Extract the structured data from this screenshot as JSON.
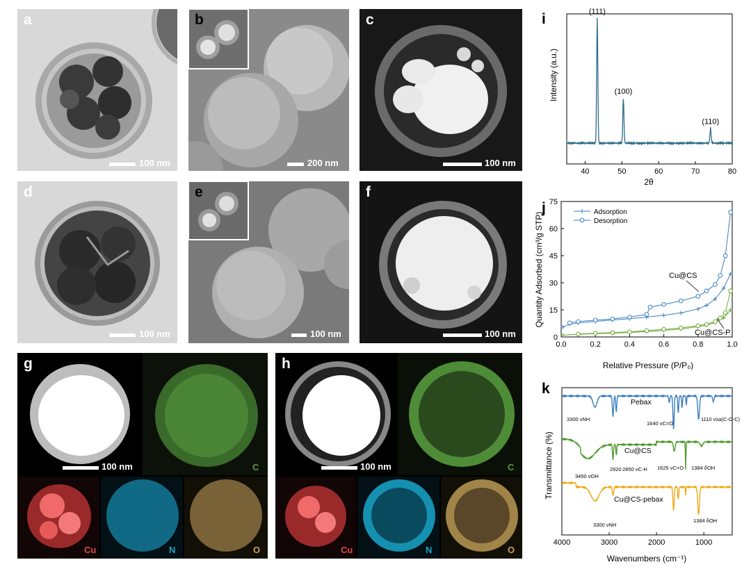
{
  "panels": {
    "a": {
      "label": "a",
      "scale": "100 nm"
    },
    "b": {
      "label": "b",
      "scale": "200 nm"
    },
    "c": {
      "label": "c",
      "scale": "100 nm"
    },
    "d": {
      "label": "d",
      "scale": "100 nm"
    },
    "e": {
      "label": "e",
      "scale": "100 nm"
    },
    "f": {
      "label": "f",
      "scale": "100 nm"
    },
    "g": {
      "label": "g",
      "scale": "100 nm",
      "maps": [
        "C",
        "Cu",
        "N",
        "O"
      ]
    },
    "h": {
      "label": "h",
      "scale": "100 nm",
      "maps": [
        "C",
        "Cu",
        "N",
        "O"
      ]
    }
  },
  "colors": {
    "C": "#5a9a3a",
    "Cu": "#e04a4a",
    "N": "#1aa3c8",
    "O": "#c8a45a"
  },
  "chart_data": [
    {
      "id": "i",
      "type": "line",
      "title": "",
      "xlabel": "2θ",
      "ylabel": "Intensity (a.u.)",
      "xlim": [
        35,
        80
      ],
      "xticks": [
        40,
        50,
        60,
        70,
        80
      ],
      "peaks": [
        {
          "x": 43.3,
          "h": 1.0,
          "label": "(111)"
        },
        {
          "x": 50.4,
          "h": 0.36,
          "label": "(100)"
        },
        {
          "x": 74.1,
          "h": 0.12,
          "label": "(110)"
        }
      ],
      "color": "#2f6b8a"
    },
    {
      "id": "j",
      "type": "line",
      "title": "",
      "xlabel": "Relative Pressure (P/P₀)",
      "ylabel": "Quantity Adsorbed (cm³/g STP)",
      "xlim": [
        0,
        1
      ],
      "ylim": [
        0,
        75
      ],
      "xticks": [
        "0.0",
        "0.2",
        "0.4",
        "0.6",
        "0.8",
        "1.0"
      ],
      "yticks": [
        "0",
        "15",
        "30",
        "45",
        "60",
        "75"
      ],
      "legend": [
        "Adsorption",
        "Desorption"
      ],
      "annotations": [
        "Cu@CS",
        "Cu@CS-P"
      ],
      "series": [
        {
          "name": "Cu@CS",
          "kind": "Adsorption",
          "x": [
            0.01,
            0.05,
            0.1,
            0.2,
            0.3,
            0.4,
            0.5,
            0.6,
            0.7,
            0.8,
            0.85,
            0.9,
            0.95,
            0.99
          ],
          "y": [
            5.5,
            7,
            7.8,
            8.6,
            9.4,
            10.1,
            11,
            12,
            13.3,
            15.5,
            17.5,
            21,
            27,
            35
          ]
        },
        {
          "name": "Cu@CS",
          "kind": "Desorption",
          "x": [
            0.99,
            0.96,
            0.93,
            0.9,
            0.85,
            0.8,
            0.7,
            0.6,
            0.52,
            0.5,
            0.4,
            0.3,
            0.2,
            0.1,
            0.05
          ],
          "y": [
            69,
            45,
            34,
            29,
            25.5,
            22.5,
            20,
            18,
            16.5,
            12.5,
            11,
            10,
            9.3,
            8.5,
            7.8
          ]
        },
        {
          "name": "Cu@CS-P",
          "kind": "Adsorption",
          "x": [
            0.01,
            0.1,
            0.2,
            0.3,
            0.4,
            0.5,
            0.6,
            0.7,
            0.8,
            0.85,
            0.9,
            0.95,
            0.99
          ],
          "y": [
            1,
            1.5,
            1.8,
            2.1,
            2.5,
            3,
            3.6,
            4.4,
            5.6,
            6.5,
            8,
            10.5,
            15
          ]
        },
        {
          "name": "Cu@CS-P",
          "kind": "Desorption",
          "x": [
            0.99,
            0.96,
            0.93,
            0.9,
            0.85,
            0.8,
            0.7,
            0.6,
            0.5,
            0.4,
            0.3,
            0.2,
            0.1
          ],
          "y": [
            25.5,
            13.5,
            10.5,
            8.5,
            7,
            6.2,
            5,
            4.2,
            3.5,
            2.8,
            2.4,
            2,
            1.6
          ]
        }
      ],
      "colors": {
        "Cu@CS": "#3a7ec0",
        "Cu@CS-P": "#6aa832"
      }
    },
    {
      "id": "k",
      "type": "line",
      "title": "",
      "xlabel": "Wavenumbers (cm⁻¹)",
      "ylabel": "Transmittance (%)",
      "xlim": [
        4000,
        400
      ],
      "xticks": [
        4000,
        3000,
        2000,
        1000
      ],
      "series": [
        {
          "name": "Pebax",
          "color": "#3a7ec0"
        },
        {
          "name": "Cu@CS",
          "color": "#4a9a2a"
        },
        {
          "name": "Cu@CS-pebax",
          "color": "#f0a818"
        }
      ],
      "annotations": {
        "pebax": [
          "3300 vNH",
          "1640 vC=O",
          "1110 vsa(C-O-C)"
        ],
        "cucs": [
          "3450 vOH",
          "2920",
          "2850 vC-H",
          "1625 vC=O",
          "1384 δOH"
        ],
        "cucspebax": [
          "3300 vNH",
          "1384 δOH"
        ]
      }
    }
  ]
}
